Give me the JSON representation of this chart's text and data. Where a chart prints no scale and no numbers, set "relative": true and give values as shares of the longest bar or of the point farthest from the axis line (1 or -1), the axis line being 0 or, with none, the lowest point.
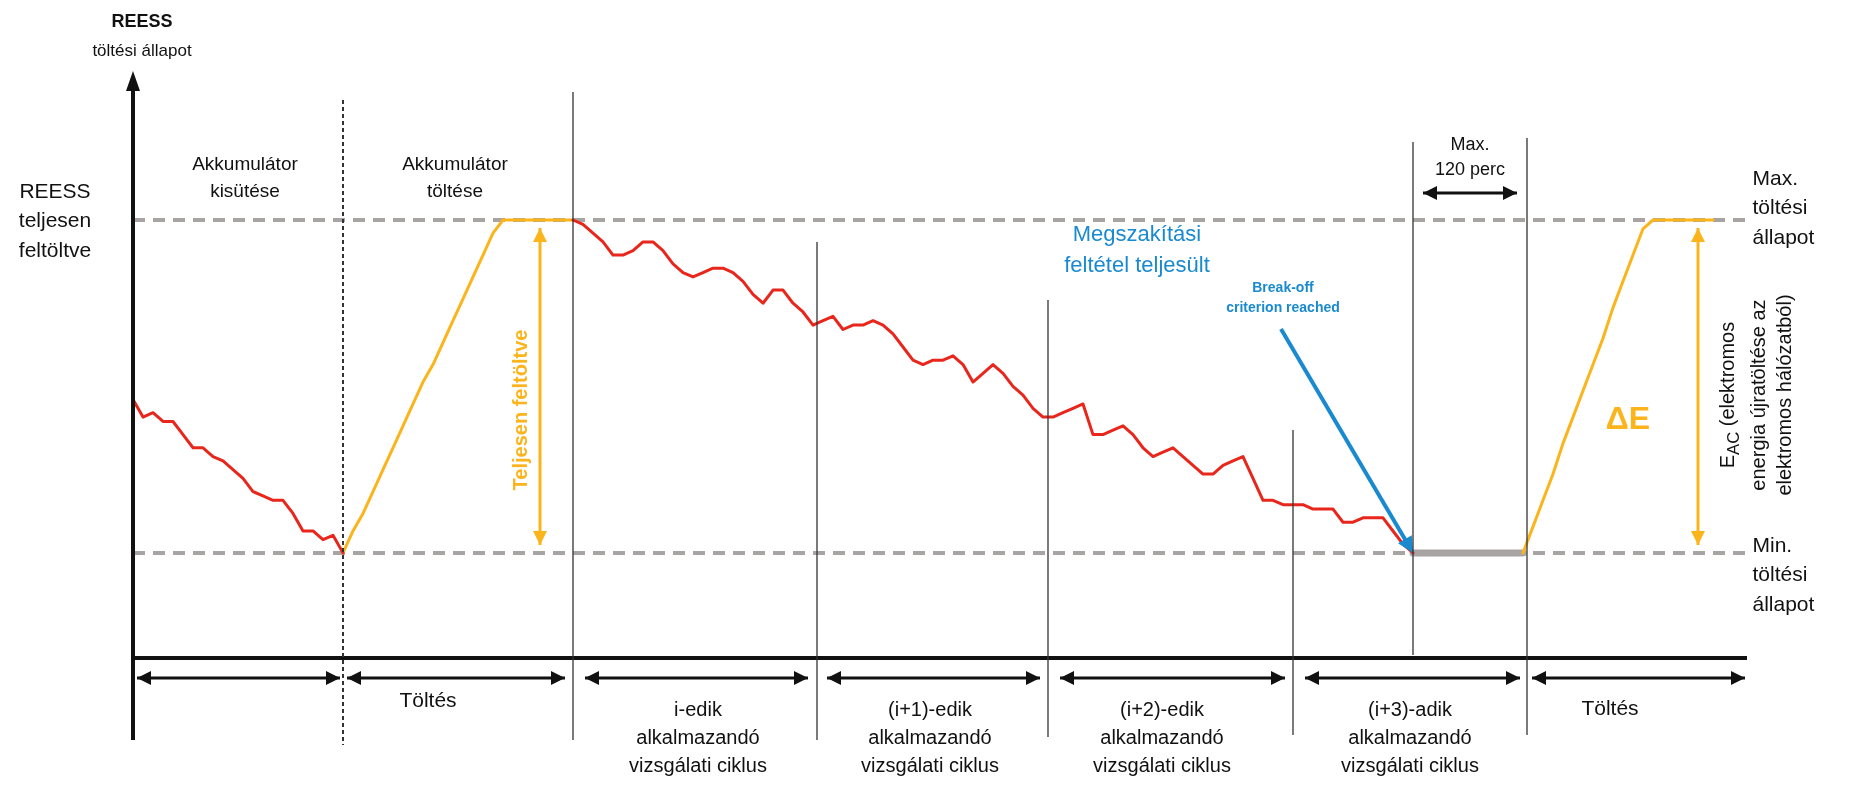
{
  "chart_data": {
    "type": "line",
    "relative": true,
    "marker": "none",
    "categories": [
      null,
      null,
      null,
      null,
      null,
      null,
      null,
      null,
      null,
      null,
      null,
      null,
      null,
      null,
      null,
      null,
      null,
      null,
      null,
      null,
      null,
      null,
      null,
      null,
      null,
      null,
      null,
      null,
      null,
      null,
      null,
      null,
      null,
      null,
      null,
      null,
      null,
      null,
      null,
      null,
      null,
      null,
      null,
      null,
      null,
      null,
      null,
      null,
      null,
      null,
      null,
      null,
      null,
      null,
      null,
      null,
      null,
      null,
      null,
      null,
      null,
      null,
      null,
      null,
      null,
      null,
      null,
      null,
      null,
      null,
      null,
      null,
      null,
      null,
      null,
      null,
      null,
      null,
      null,
      null,
      null,
      null,
      null,
      null,
      null,
      null,
      null,
      null,
      null,
      null,
      null,
      null,
      null,
      null,
      null,
      null,
      null,
      null,
      null,
      null,
      null,
      null,
      null,
      null,
      null,
      null,
      null,
      null,
      null,
      null,
      null,
      null,
      null,
      null,
      null,
      null,
      null,
      null,
      null,
      null,
      null,
      null,
      null,
      null,
      null,
      null,
      null,
      null,
      null,
      null,
      null,
      null,
      null,
      null,
      null,
      null,
      null,
      null,
      null,
      null,
      null,
      null,
      null,
      null,
      null,
      null,
      null,
      null,
      null,
      null,
      null,
      null,
      null,
      null,
      null,
      null,
      null,
      null,
      null,
      null,
      null,
      null
    ],
    "series": [
      {
        "color": "#e8261c",
        "values": [
          0.59,
          0.55,
          0.56,
          0.54,
          0.54,
          0.51,
          0.48,
          0.48,
          0.46,
          0.45,
          0.43,
          0.41,
          0.38,
          0.37,
          0.36,
          0.36,
          0.33,
          0.29,
          0.29,
          0.27,
          0.28,
          0.24,
          null,
          null,
          null,
          null,
          null,
          null,
          null,
          null,
          null,
          null,
          null,
          null,
          null,
          null,
          null,
          null,
          null,
          null,
          null,
          null,
          null,
          null,
          1.0,
          0.99,
          0.97,
          0.95,
          0.92,
          0.92,
          0.93,
          0.95,
          0.95,
          0.93,
          0.9,
          0.88,
          0.87,
          0.88,
          0.89,
          0.89,
          0.88,
          0.86,
          0.83,
          0.81,
          0.84,
          0.84,
          0.81,
          0.79,
          0.76,
          0.77,
          0.78,
          0.75,
          0.76,
          0.76,
          0.77,
          0.76,
          0.74,
          0.71,
          0.68,
          0.67,
          0.68,
          0.68,
          0.69,
          0.67,
          0.63,
          0.65,
          0.67,
          0.65,
          0.62,
          0.6,
          0.57,
          0.55,
          0.55,
          0.56,
          0.57,
          0.58,
          0.51,
          0.51,
          0.52,
          0.53,
          0.51,
          0.48,
          0.46,
          0.47,
          0.48,
          0.46,
          0.44,
          0.42,
          0.42,
          0.44,
          0.45,
          0.46,
          0.41,
          0.36,
          0.36,
          0.35,
          0.35,
          0.35,
          0.34,
          0.34,
          0.34,
          0.31,
          0.31,
          0.32,
          0.32,
          0.32,
          0.29,
          0.26,
          0.24,
          null,
          null,
          null,
          null,
          null,
          null,
          null,
          null,
          null,
          null,
          null,
          null,
          null,
          null,
          null,
          null,
          null,
          null,
          null,
          null,
          null,
          null,
          null,
          null,
          null,
          null,
          null,
          null,
          null,
          null,
          null,
          null,
          null
        ]
      },
      {
        "color": "#fbb41b",
        "values": [
          null,
          null,
          null,
          null,
          null,
          null,
          null,
          null,
          null,
          null,
          null,
          null,
          null,
          null,
          null,
          null,
          null,
          null,
          null,
          null,
          null,
          0.24,
          0.29,
          0.33,
          0.38,
          0.43,
          0.48,
          0.53,
          0.58,
          0.63,
          0.67,
          0.72,
          0.77,
          0.82,
          0.87,
          0.92,
          0.97,
          1,
          1,
          1,
          1,
          1,
          1,
          1,
          1,
          null,
          null,
          null,
          null,
          null,
          null,
          null,
          null,
          null,
          null,
          null,
          null,
          null,
          null,
          null,
          null,
          null,
          null,
          null,
          null,
          null,
          null,
          null,
          null,
          null,
          null,
          null,
          null,
          null,
          null,
          null,
          null,
          null,
          null,
          null,
          null,
          null,
          null,
          null,
          null,
          null,
          null,
          null,
          null,
          null,
          null,
          null,
          null,
          null,
          null,
          null,
          null,
          null,
          null,
          null,
          null,
          null,
          null,
          null,
          null,
          null,
          null,
          null,
          null,
          null,
          null,
          null,
          null,
          null,
          null,
          null,
          null,
          null,
          null,
          null,
          null,
          null,
          null,
          null,
          null,
          null,
          null,
          null,
          null,
          null,
          null,
          null,
          null,
          null,
          null,
          null,
          null,
          null,
          null,
          0.24,
          0.3,
          0.36,
          0.42,
          0.49,
          0.55,
          0.61,
          0.67,
          0.73,
          0.8,
          0.86,
          0.92,
          0.98,
          1,
          1,
          1,
          1,
          1,
          1,
          1,
          null,
          null,
          null
        ]
      },
      {
        "color": "#a9a4a4",
        "values": [
          null,
          null,
          null,
          null,
          null,
          null,
          null,
          null,
          null,
          null,
          null,
          null,
          null,
          null,
          null,
          null,
          null,
          null,
          null,
          null,
          null,
          null,
          null,
          null,
          null,
          null,
          null,
          null,
          null,
          null,
          null,
          null,
          null,
          null,
          null,
          null,
          null,
          null,
          null,
          null,
          null,
          null,
          null,
          null,
          null,
          null,
          null,
          null,
          null,
          null,
          null,
          null,
          null,
          null,
          null,
          null,
          null,
          null,
          null,
          null,
          null,
          null,
          null,
          null,
          null,
          null,
          null,
          null,
          null,
          null,
          null,
          null,
          null,
          null,
          null,
          null,
          null,
          null,
          null,
          null,
          null,
          null,
          null,
          null,
          null,
          null,
          null,
          null,
          null,
          null,
          null,
          null,
          null,
          null,
          null,
          null,
          null,
          null,
          null,
          null,
          null,
          null,
          null,
          null,
          null,
          null,
          null,
          null,
          null,
          null,
          null,
          null,
          null,
          null,
          null,
          null,
          null,
          null,
          null,
          null,
          null,
          null,
          null,
          null,
          null,
          null,
          null,
          null,
          0.24,
          0.24,
          0.24,
          0.24,
          0.24,
          0.24,
          0.24,
          0.24,
          0.24,
          0.24,
          0.24,
          0.24,
          null,
          null,
          null,
          null,
          null,
          null,
          null,
          null,
          null,
          null,
          null,
          null,
          null,
          null,
          null,
          null,
          null,
          null,
          null,
          null,
          null,
          null
        ]
      }
    ],
    "ref_lines": [
      {
        "axis": "y",
        "value": 1,
        "label": "Max. töltési állapot",
        "color": "#a9a4a4",
        "line_style": "dashed"
      },
      {
        "axis": "y",
        "value": 0.24,
        "label": "Min. töltési állapot",
        "color": "#a9a4a4",
        "line_style": "dashed"
      }
    ],
    "annotations": [
      "Akkumulátor kisütése",
      "Akkumulátor töltése",
      "REESS teljesen feltöltve",
      "Teljesen feltöltve",
      "Megszakítási feltétel teljesült",
      "Break-off\ncriterion reached",
      "Max.\n120 perc",
      "ΔE",
      "E$_{AC}$ (elektromos\nenergia újratöltése az\nelektromos hálózatból)",
      "Töltés",
      "i-edik alkalmazandó vizsgálati ciklus",
      "(i+1)-edik alkalmazandó vizsgálati ciklus",
      "(i+2)-edik alkalmazandó vizsgálati ciklus",
      "(i+3)-adik alkalmazandó vizsgálati ciklus",
      "Töltés",
      "REESS\ntöltési állapot"
    ]
  }
}
